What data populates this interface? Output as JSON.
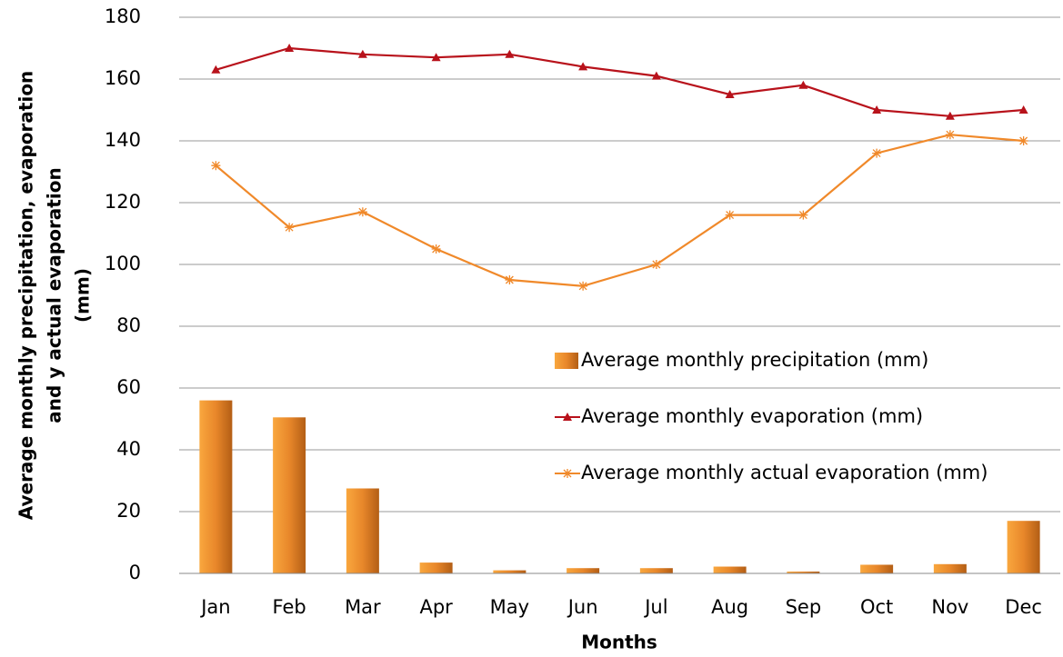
{
  "chart_data": {
    "type": "bar",
    "categories": [
      "Jan",
      "Feb",
      "Mar",
      "Apr",
      "May",
      "Jun",
      "Jul",
      "Aug",
      "Sep",
      "Oct",
      "Nov",
      "Dec"
    ],
    "series": [
      {
        "name": "Average monthly precipitation (mm)",
        "type": "bar",
        "color": "#e8872a",
        "values": [
          56,
          50.5,
          27.5,
          3.5,
          1,
          1.7,
          1.7,
          2.2,
          0.6,
          2.8,
          3,
          17
        ]
      },
      {
        "name": "Average monthly evaporation (mm)",
        "type": "line",
        "marker": "triangle",
        "color": "#b8121b",
        "values": [
          163,
          170,
          168,
          167,
          168,
          164,
          161,
          155,
          158,
          150,
          148,
          150
        ]
      },
      {
        "name": "Average monthly actual evaporation (mm)",
        "type": "line",
        "marker": "star",
        "color": "#f0892a",
        "values": [
          132,
          112,
          117,
          105,
          95,
          93,
          100,
          116,
          116,
          136,
          142,
          140
        ]
      }
    ],
    "xlabel": "Months",
    "ylabel_lines": [
      "Average monthly precipitation, evaporation",
      "and y actual evaporation",
      "(mm)"
    ],
    "ylim": [
      0,
      180
    ],
    "yticks": [
      0,
      20,
      40,
      60,
      80,
      100,
      120,
      140,
      160,
      180
    ],
    "grid": true
  }
}
